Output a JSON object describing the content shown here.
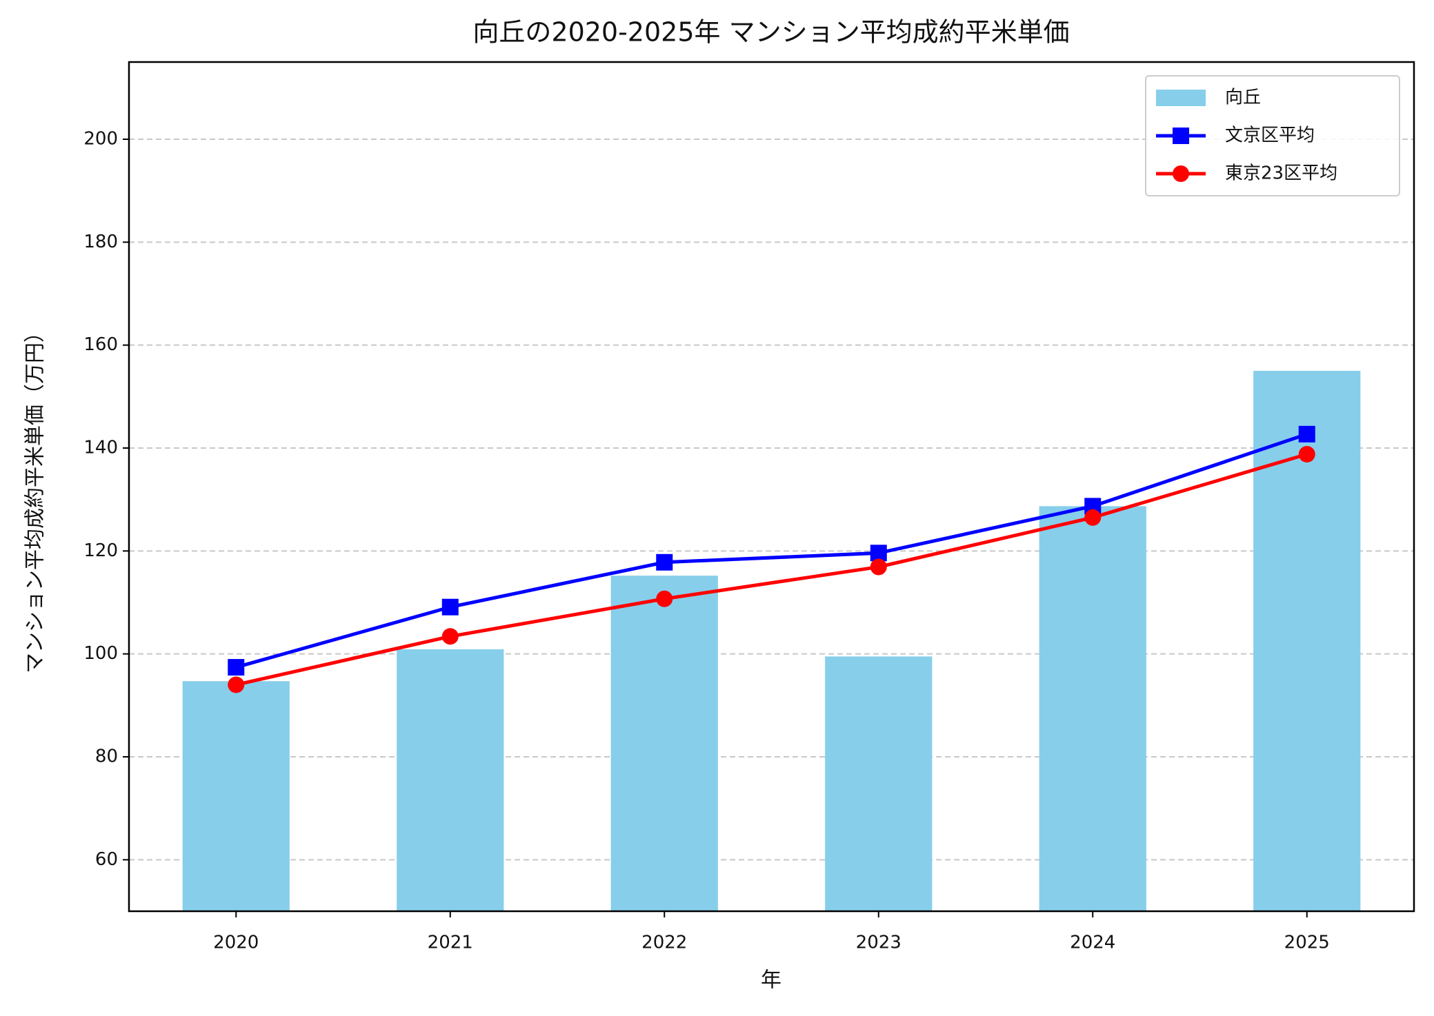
{
  "chart_data": {
    "type": "bar",
    "title": "向丘の2020-2025年 マンション平均成約平米単価",
    "x_label": "年",
    "y_label": "マンション平均成約平米単価（万円）",
    "categories": [
      "2020",
      "2021",
      "2022",
      "2023",
      "2024",
      "2025"
    ],
    "series": [
      {
        "name": "向丘",
        "type": "bar",
        "color": "#87ceeb",
        "values": [
          94.7,
          100.9,
          115.2,
          99.5,
          128.7,
          155.0
        ]
      },
      {
        "name": "文京区平均",
        "type": "line",
        "marker": "square",
        "color": "#0000ff",
        "values": [
          97.4,
          109.1,
          117.8,
          119.6,
          128.7,
          142.7
        ]
      },
      {
        "name": "東京23区平均",
        "type": "line",
        "marker": "circle",
        "color": "#ff0000",
        "values": [
          94.0,
          103.4,
          110.7,
          116.9,
          126.5,
          138.8
        ]
      }
    ],
    "ylim": [
      50,
      215
    ],
    "yticks": [
      60,
      80,
      100,
      120,
      140,
      160,
      180,
      200
    ],
    "grid": true,
    "legend": "upper-right"
  }
}
